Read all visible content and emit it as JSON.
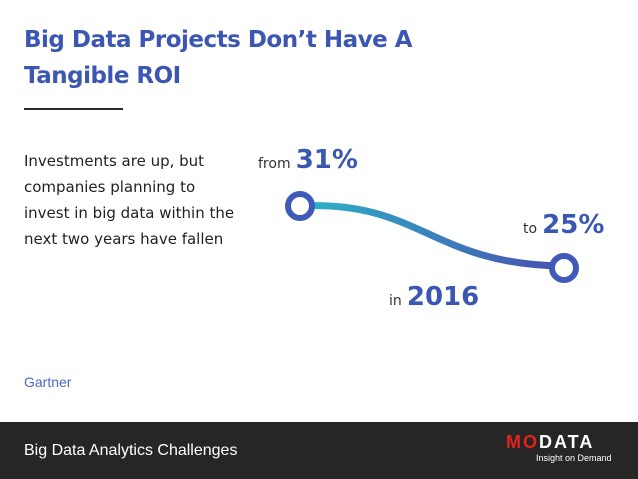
{
  "slide": {
    "title": "Big Data Projects Don’t Have A Tangible ROI",
    "body": "Investments are up, but companies planning to invest in big data within the next two years have fallen",
    "source": "Gartner"
  },
  "stats": {
    "from": {
      "prefix": "from",
      "value": "31%"
    },
    "to": {
      "prefix": "to",
      "value": "25%"
    },
    "year": {
      "prefix": "in",
      "value": "2016"
    }
  },
  "footer": {
    "title": "Big Data Analytics Challenges",
    "logo": {
      "word_accent": "MO",
      "word_rest": "DATA",
      "tagline": "Insight on Demand"
    }
  },
  "colors": {
    "accent": "#3b57b3",
    "curve_start": "#2bb5c9",
    "curve_end": "#4a4fb0",
    "footer_bg": "#262626",
    "logo_red": "#e2231a"
  }
}
